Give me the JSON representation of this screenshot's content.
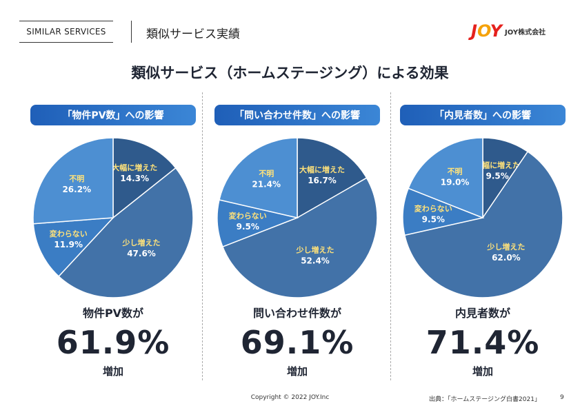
{
  "header": {
    "section_label": "SIMILAR SERVICES",
    "section_title": "類似サービス実績",
    "logo_mark": [
      "J",
      "O",
      "Y"
    ],
    "logo_text": "JOY株式会社"
  },
  "title": "類似サービス（ホームステージング）による効果",
  "panels": [
    {
      "heading": "「物件PV数」への影響",
      "metric_label": "物件PV数が",
      "big_value": "61.9%",
      "suffix": "増加"
    },
    {
      "heading": "「問い合わせ件数」への影響",
      "metric_label": "問い合わせ件数が",
      "big_value": "69.1%",
      "suffix": "増加"
    },
    {
      "heading": "「内見者数」への影響",
      "metric_label": "内見者数が",
      "big_value": "71.4%",
      "suffix": "増加"
    }
  ],
  "chart_data": [
    {
      "type": "pie",
      "title": "「物件PV数」への影響",
      "slices": [
        {
          "label": "大幅に増えた",
          "value": 14.3,
          "display": "14.3%",
          "color": "#2f5a8c"
        },
        {
          "label": "少し増えた",
          "value": 47.6,
          "display": "47.6%",
          "color": "#4272a8"
        },
        {
          "label": "変わらない",
          "value": 11.9,
          "display": "11.9%",
          "color": "#3b7dc4"
        },
        {
          "label": "不明",
          "value": 26.2,
          "display": "26.2%",
          "color": "#4d8fd2"
        }
      ]
    },
    {
      "type": "pie",
      "title": "「問い合わせ件数」への影響",
      "slices": [
        {
          "label": "大幅に増えた",
          "value": 16.7,
          "display": "16.7%",
          "color": "#2f5a8c"
        },
        {
          "label": "少し増えた",
          "value": 52.4,
          "display": "52.4%",
          "color": "#4272a8"
        },
        {
          "label": "変わらない",
          "value": 9.5,
          "display": "9.5%",
          "color": "#3b7dc4"
        },
        {
          "label": "不明",
          "value": 21.4,
          "display": "21.4%",
          "color": "#4d8fd2"
        }
      ]
    },
    {
      "type": "pie",
      "title": "「内見者数」への影響",
      "slices": [
        {
          "label": "大幅に増えた",
          "value": 9.5,
          "display": "9.5%",
          "color": "#2f5a8c"
        },
        {
          "label": "少し増えた",
          "value": 62.0,
          "display": "62.0%",
          "color": "#4272a8"
        },
        {
          "label": "変わらない",
          "value": 9.5,
          "display": "9.5%",
          "color": "#3b7dc4"
        },
        {
          "label": "不明",
          "value": 19.0,
          "display": "19.0%",
          "color": "#4d8fd2"
        }
      ]
    }
  ],
  "colors": {
    "label_yellow": "#ffe27a",
    "label_white": "#ffffff"
  },
  "footer": {
    "copyright": "Copyright © 2022 JOY.Inc",
    "source": "出典：「ホームステージング白書2021」",
    "page": "9"
  }
}
